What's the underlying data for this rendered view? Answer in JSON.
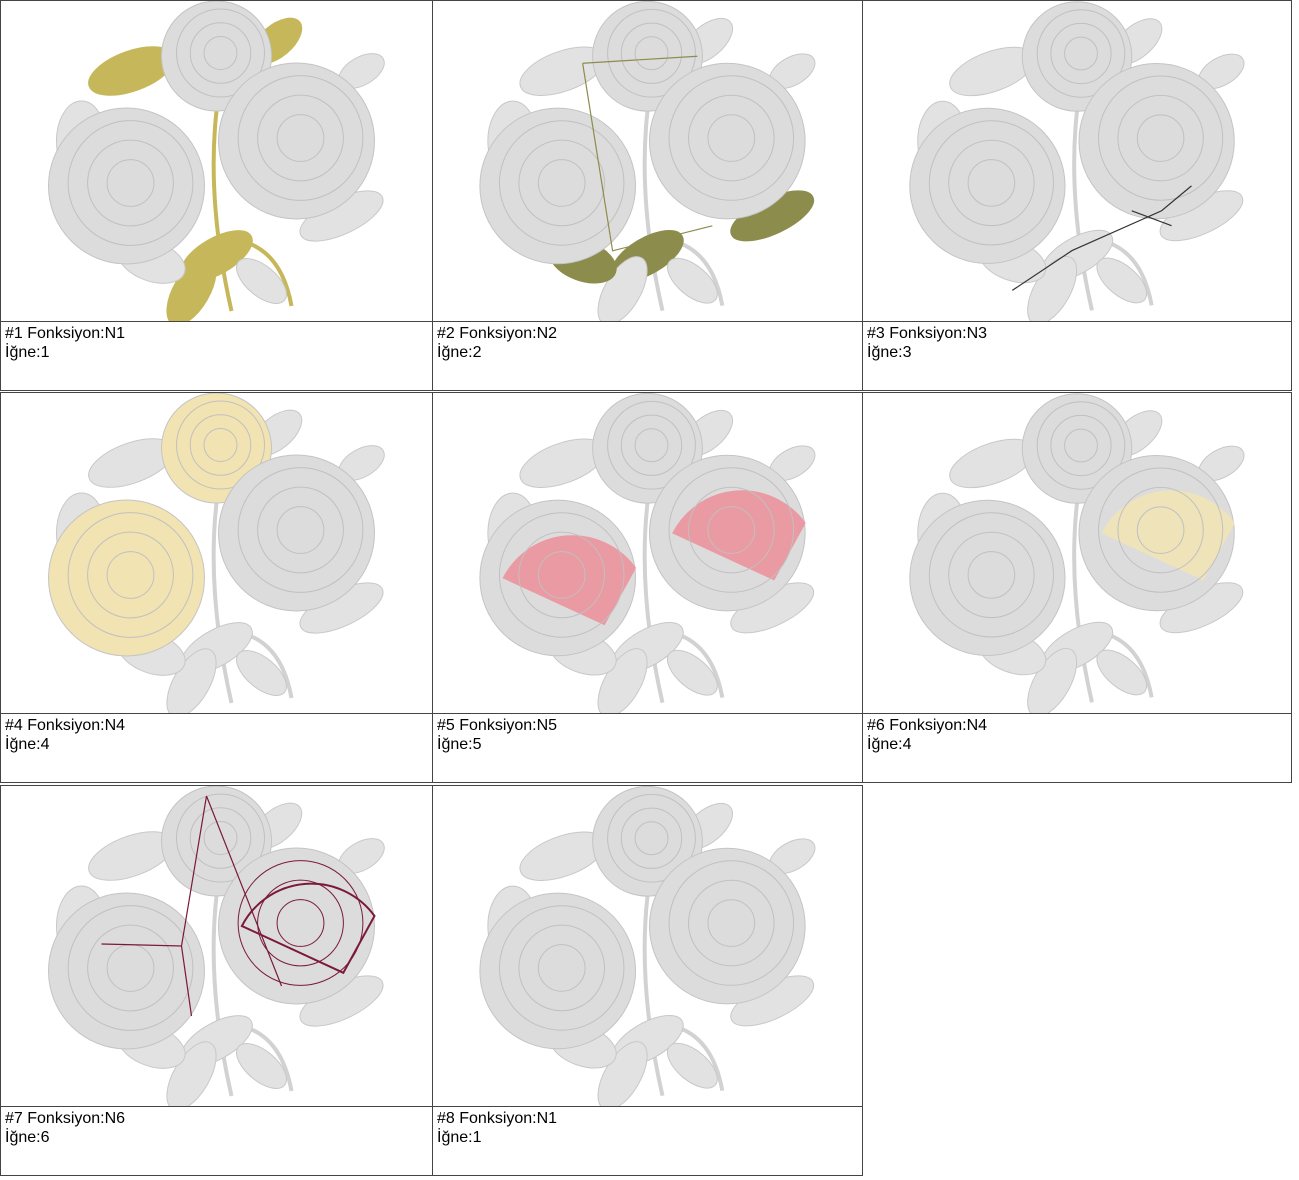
{
  "cells": [
    {
      "title": "#1 Fonksiyon:N1",
      "needle": "İğne:1"
    },
    {
      "title": "#2 Fonksiyon:N2",
      "needle": "İğne:2"
    },
    {
      "title": "#3 Fonksiyon:N3",
      "needle": "İğne:3"
    },
    {
      "title": "#4 Fonksiyon:N4",
      "needle": "İğne:4"
    },
    {
      "title": "#5 Fonksiyon:N5",
      "needle": "İğne:5"
    },
    {
      "title": "#6 Fonksiyon:N4",
      "needle": "İğne:4"
    },
    {
      "title": "#7 Fonksiyon:N6",
      "needle": "İğne:6"
    },
    {
      "title": "#8 Fonksiyon:N1",
      "needle": "İğne:1"
    }
  ]
}
